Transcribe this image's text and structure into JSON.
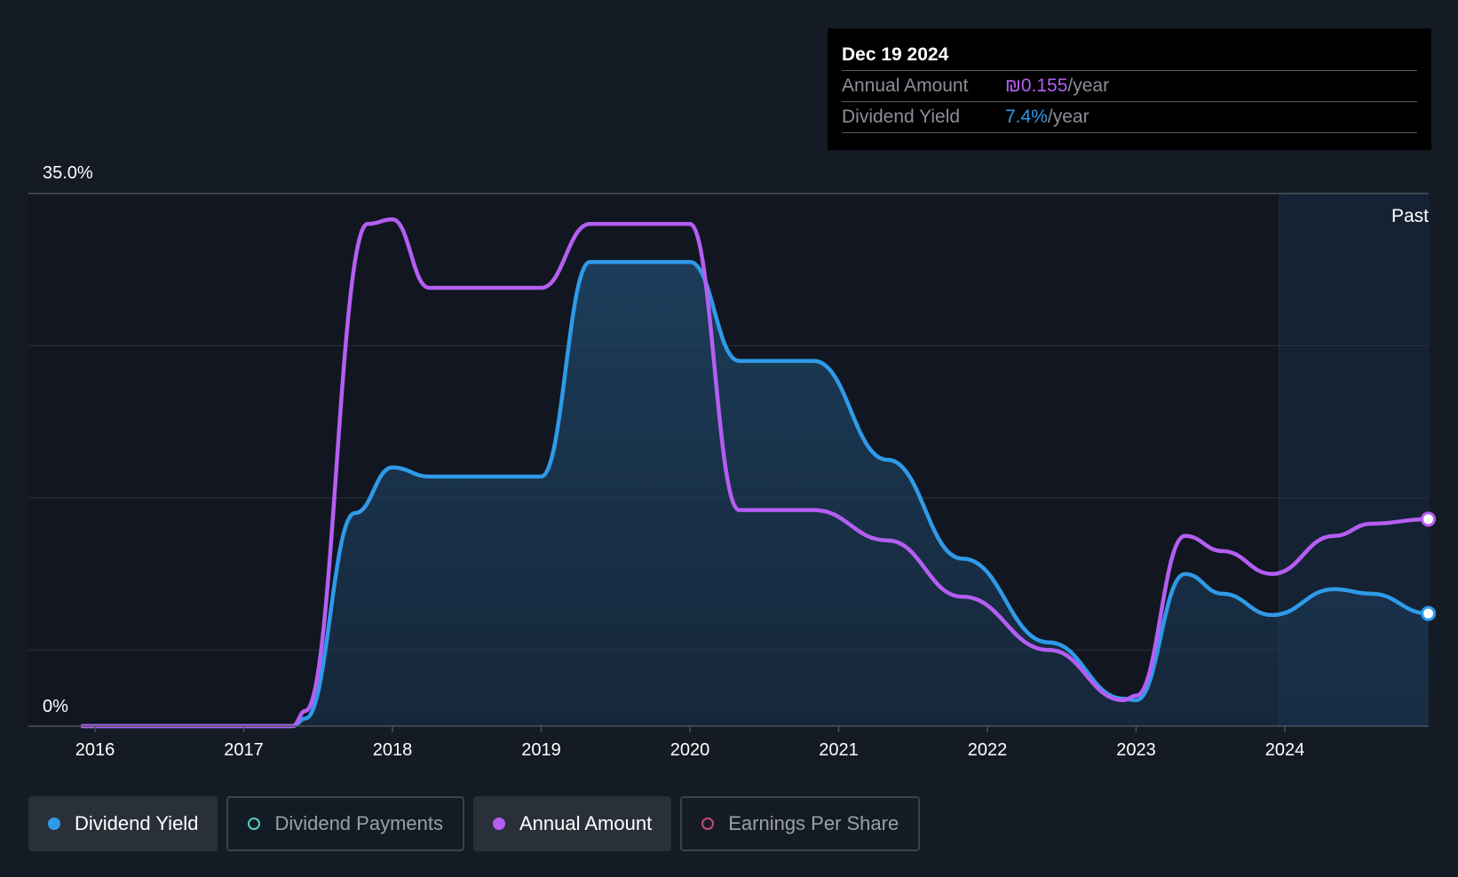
{
  "colors": {
    "background": "#151b24",
    "dividend_yield": "#2f9ae8",
    "annual_amount": "#b45ef2",
    "dividend_payments": "#4fd1c5",
    "earnings_per_share": "#c2477f"
  },
  "tooltip": {
    "date": "Dec 19 2024",
    "annual_amount_label": "Annual Amount",
    "annual_amount_value": "₪0.155",
    "annual_amount_unit": "/year",
    "dividend_yield_label": "Dividend Yield",
    "dividend_yield_value": "7.4%",
    "dividend_yield_unit": "/year"
  },
  "legend": [
    {
      "label": "Dividend Yield",
      "active": true,
      "color": "#2f9ae8"
    },
    {
      "label": "Dividend Payments",
      "active": false,
      "color": "#4fd1c5"
    },
    {
      "label": "Annual Amount",
      "active": true,
      "color": "#b45ef2"
    },
    {
      "label": "Earnings Per Share",
      "active": false,
      "color": "#c2477f"
    }
  ],
  "chart_data": {
    "type": "line",
    "x_tick_labels": [
      "2016",
      "2017",
      "2018",
      "2019",
      "2020",
      "2021",
      "2022",
      "2023",
      "2024"
    ],
    "y_tick_labels": [
      "35.0%",
      "0%"
    ],
    "ylim": [
      0,
      35
    ],
    "xlim": [
      "2015-12-01",
      "2024-12-19"
    ],
    "past_label": "Past",
    "past_region_start": "2023-12-19",
    "grid": true,
    "series": [
      {
        "name": "Dividend Yield",
        "color": "#2f9ae8",
        "filled": true,
        "points": [
          [
            "2015-12-01",
            0
          ],
          [
            "2017-05-01",
            0
          ],
          [
            "2017-06-01",
            0.5
          ],
          [
            "2017-10-01",
            14.0
          ],
          [
            "2018-01-01",
            17.0
          ],
          [
            "2018-04-01",
            16.4
          ],
          [
            "2019-01-01",
            16.4
          ],
          [
            "2019-05-01",
            30.5
          ],
          [
            "2020-01-01",
            30.5
          ],
          [
            "2020-05-01",
            24.0
          ],
          [
            "2020-11-01",
            24.0
          ],
          [
            "2021-05-01",
            17.5
          ],
          [
            "2021-11-01",
            11.0
          ],
          [
            "2022-06-01",
            5.5
          ],
          [
            "2022-12-01",
            1.8
          ],
          [
            "2023-01-01",
            1.7
          ],
          [
            "2023-05-01",
            10.0
          ],
          [
            "2023-08-01",
            8.7
          ],
          [
            "2023-12-01",
            7.3
          ],
          [
            "2024-05-01",
            9.0
          ],
          [
            "2024-08-01",
            8.7
          ],
          [
            "2024-12-19",
            7.4
          ]
        ]
      },
      {
        "name": "Annual Amount",
        "color": "#b45ef2",
        "filled": false,
        "points": [
          [
            "2015-12-01",
            0
          ],
          [
            "2017-05-01",
            0
          ],
          [
            "2017-06-01",
            1.0
          ],
          [
            "2017-11-01",
            33.0
          ],
          [
            "2018-01-01",
            33.3
          ],
          [
            "2018-04-01",
            28.8
          ],
          [
            "2019-01-01",
            28.8
          ],
          [
            "2019-05-01",
            33.0
          ],
          [
            "2020-01-01",
            33.0
          ],
          [
            "2020-05-01",
            14.2
          ],
          [
            "2020-11-01",
            14.2
          ],
          [
            "2021-05-01",
            12.2
          ],
          [
            "2021-11-01",
            8.5
          ],
          [
            "2022-06-01",
            5.0
          ],
          [
            "2022-12-01",
            1.7
          ],
          [
            "2023-01-01",
            2.0
          ],
          [
            "2023-05-01",
            12.5
          ],
          [
            "2023-08-01",
            11.5
          ],
          [
            "2023-12-01",
            10.0
          ],
          [
            "2024-05-01",
            12.5
          ],
          [
            "2024-08-01",
            13.3
          ],
          [
            "2024-12-19",
            13.6
          ]
        ]
      }
    ]
  }
}
